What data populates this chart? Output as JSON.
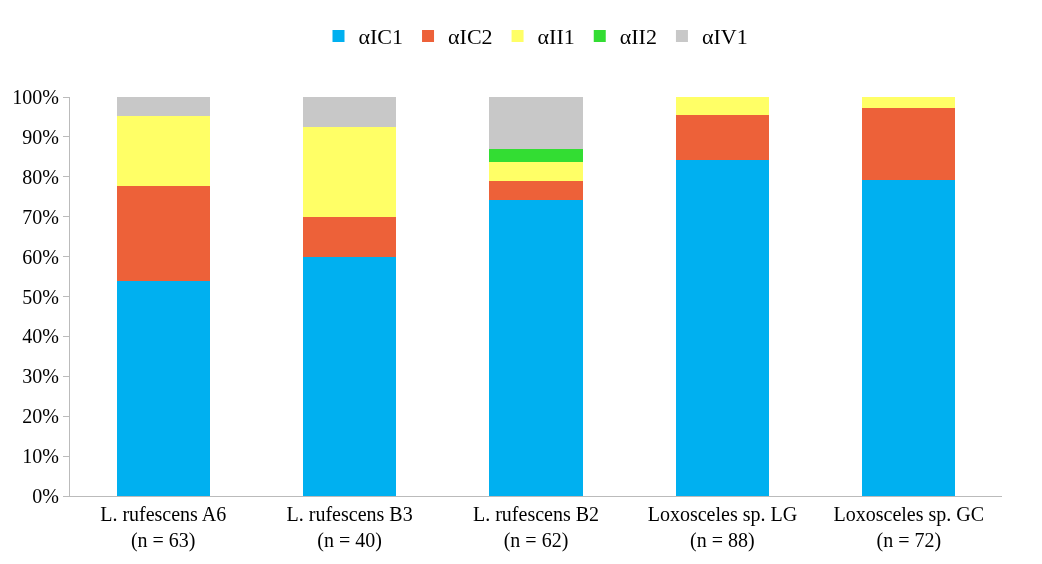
{
  "chart_data": {
    "type": "bar",
    "stacked": true,
    "categories": [
      "L. rufescens A6\n(n = 63)",
      "L. rufescens B3\n(n = 40)",
      "L. rufescens B2\n(n = 62)",
      "Loxosceles sp. LG\n(n = 88)",
      "Loxosceles sp. GC\n(n = 72)"
    ],
    "series": [
      {
        "name": "αIC1",
        "color": "#00b0f0",
        "values": [
          54,
          60,
          74.2,
          84.1,
          79.2
        ]
      },
      {
        "name": "αIC2",
        "color": "#ed6139",
        "values": [
          23.8,
          10,
          4.8,
          11.4,
          18.1
        ]
      },
      {
        "name": "αII1",
        "color": "#ffff66",
        "values": [
          17.5,
          22.5,
          4.8,
          4.5,
          2.7
        ]
      },
      {
        "name": "αII2",
        "color": "#33dd33",
        "values": [
          0,
          0,
          3.2,
          0,
          0
        ]
      },
      {
        "name": "αIV1",
        "color": "#c8c8c8",
        "values": [
          4.7,
          7.5,
          13,
          0,
          0
        ]
      }
    ],
    "ylim": [
      0,
      100
    ],
    "yticks": [
      {
        "value": 0,
        "label": "0%"
      },
      {
        "value": 10,
        "label": "10%"
      },
      {
        "value": 20,
        "label": "20%"
      },
      {
        "value": 30,
        "label": "30%"
      },
      {
        "value": 40,
        "label": "40%"
      },
      {
        "value": 50,
        "label": "50%"
      },
      {
        "value": 60,
        "label": "60%"
      },
      {
        "value": 70,
        "label": "70%"
      },
      {
        "value": 80,
        "label": "80%"
      },
      {
        "value": 90,
        "label": "90%"
      },
      {
        "value": 100,
        "label": "100%"
      }
    ],
    "legend": "top"
  }
}
